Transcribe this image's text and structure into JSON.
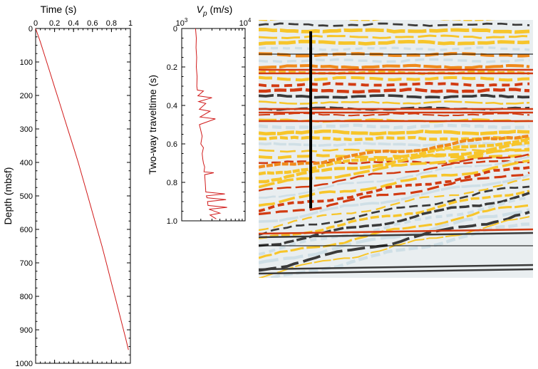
{
  "chart_data": [
    {
      "type": "line",
      "panel": "time-depth",
      "xlabel": "Time (s)",
      "ylabel": "Depth (mbsf)",
      "xlim": [
        0,
        1
      ],
      "ylim": [
        0,
        1000
      ],
      "y_inverted": true,
      "x_ticks": [
        "0",
        "0.2",
        "0.4",
        "0.6",
        "0.8",
        "1"
      ],
      "y_ticks": [
        "0",
        "100",
        "200",
        "300",
        "400",
        "500",
        "600",
        "700",
        "800",
        "900",
        "1000"
      ],
      "series_color": "#d11a1a",
      "x": [
        0,
        0.05,
        0.1,
        0.15,
        0.2,
        0.25,
        0.3,
        0.35,
        0.4,
        0.45,
        0.5,
        0.55,
        0.6,
        0.65,
        0.7,
        0.75,
        0.8,
        0.85,
        0.9,
        0.95,
        0.98
      ],
      "y": [
        0,
        40,
        85,
        130,
        175,
        220,
        265,
        310,
        355,
        400,
        450,
        500,
        550,
        600,
        650,
        705,
        760,
        815,
        870,
        925,
        960
      ]
    },
    {
      "type": "line",
      "panel": "velocity-log",
      "xlabel_symbol": "V",
      "xlabel_subscript": "p",
      "xlabel_unit": " (m/s)",
      "ylabel": "Two-way traveltime (s)",
      "xscale": "log",
      "xlim": [
        1000,
        10000
      ],
      "x_tick_labels": [
        {
          "base": "10",
          "exp": "3"
        },
        {
          "base": "10",
          "exp": "4"
        }
      ],
      "ylim": [
        0,
        1
      ],
      "y_inverted": true,
      "y_ticks": [
        "0",
        "0.2",
        "0.4",
        "0.6",
        "0.8",
        "1.0"
      ],
      "series_color": "#d11a1a",
      "x": [
        1650,
        1700,
        1680,
        1720,
        1700,
        1750,
        1730,
        1760,
        2200,
        1800,
        3000,
        1850,
        2400,
        1900,
        2800,
        1950,
        3400,
        1900,
        2000,
        2100,
        2000,
        2200,
        2100,
        2150,
        2200,
        2300,
        2250,
        3200,
        2300,
        2350,
        2400,
        4800,
        2450,
        2500,
        5000,
        2550,
        2600,
        5200,
        2700,
        4000,
        2800,
        3500
      ],
      "y": [
        0,
        0.05,
        0.1,
        0.15,
        0.2,
        0.25,
        0.3,
        0.32,
        0.325,
        0.35,
        0.36,
        0.38,
        0.39,
        0.42,
        0.43,
        0.46,
        0.47,
        0.5,
        0.53,
        0.56,
        0.6,
        0.62,
        0.65,
        0.68,
        0.7,
        0.72,
        0.745,
        0.75,
        0.76,
        0.8,
        0.85,
        0.86,
        0.87,
        0.88,
        0.89,
        0.9,
        0.92,
        0.93,
        0.94,
        0.96,
        0.97,
        0.99
      ]
    },
    {
      "type": "heatmap",
      "panel": "seismic-section",
      "description": "Seismic reflection profile in color-wiggle display; vertical black bar marks the site location",
      "colors": {
        "background": "#e9eef0",
        "pale": "#cfdfe6",
        "yellow": "#f7c52a",
        "orange": "#f08a1c",
        "red": "#d23b12",
        "dark": "#3a3a3a"
      },
      "marker_twt_range": [
        0,
        0.92
      ]
    }
  ]
}
